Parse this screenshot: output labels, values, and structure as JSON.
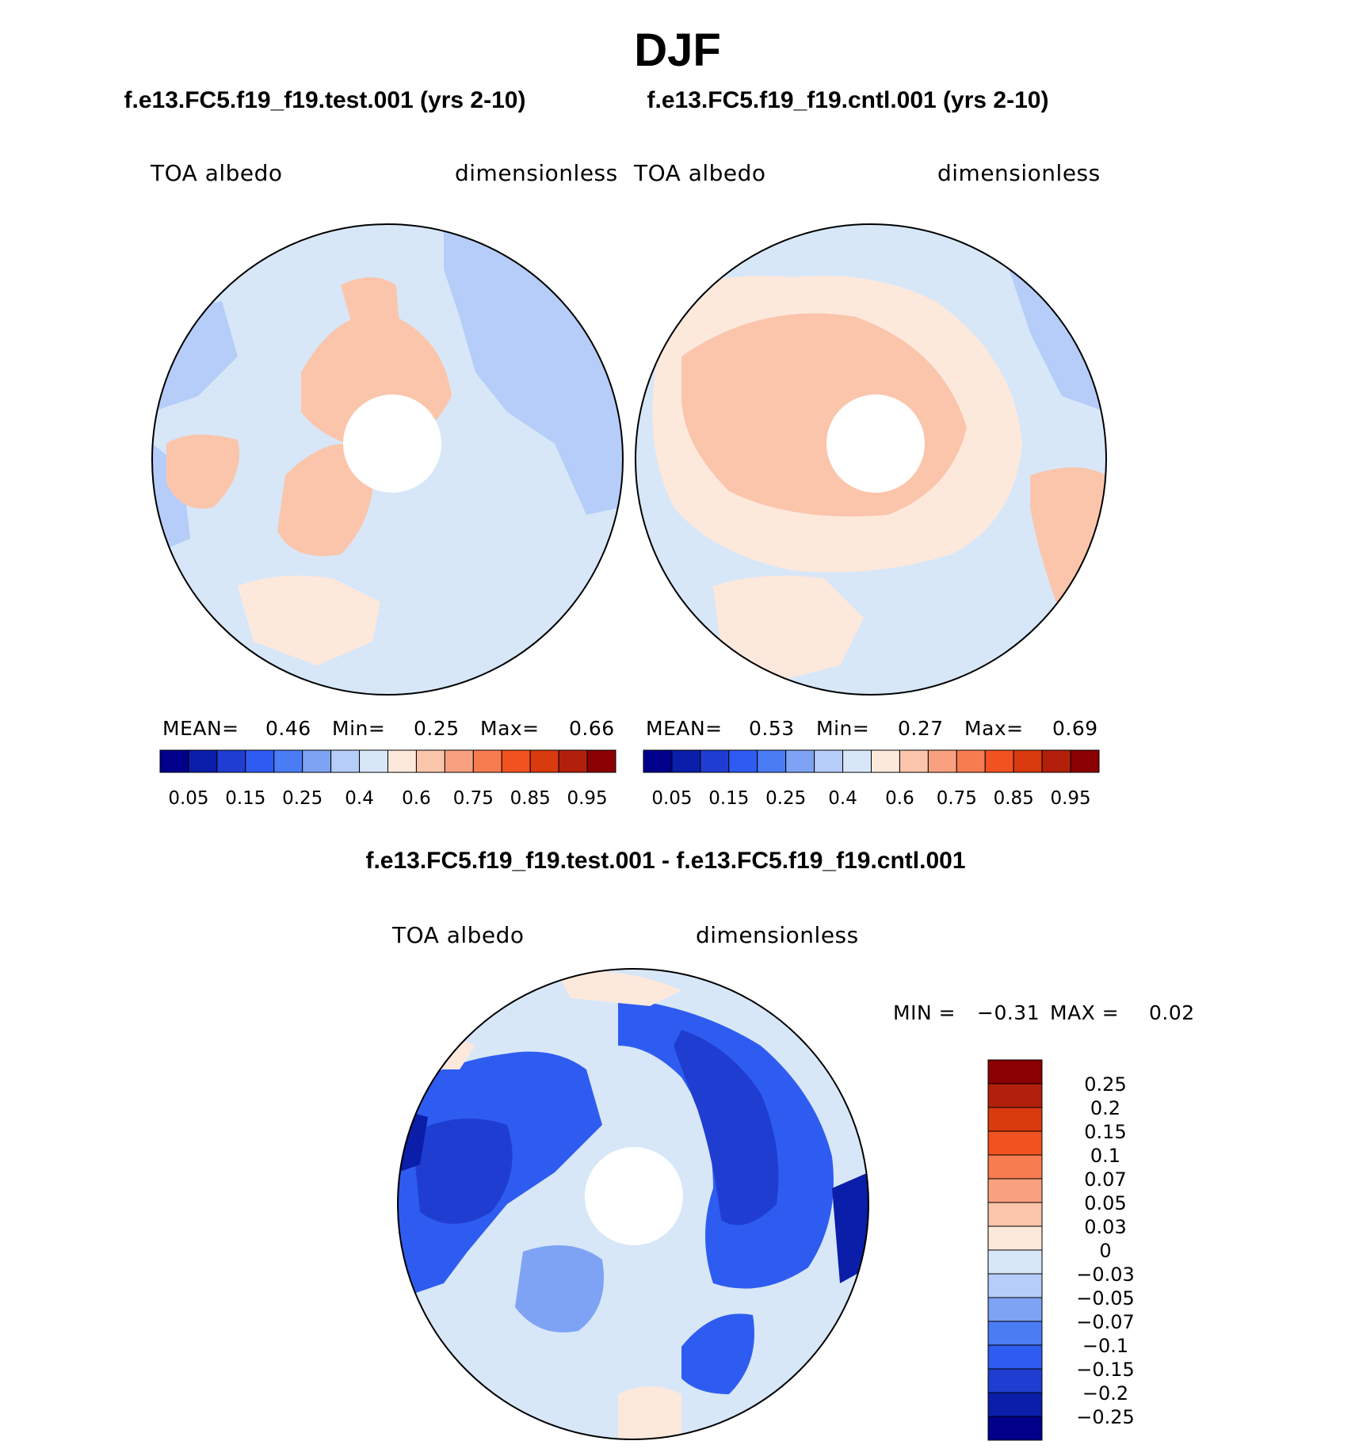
{
  "page": {
    "title": "DJF"
  },
  "chart_data": [
    {
      "type": "heatmap",
      "projection": "north-polar-stereographic",
      "case": "f.e13.FC5.f19_f19.test.001 (yrs 2-10)",
      "variable": "TOA  albedo",
      "units": "dimensionless",
      "stats": {
        "mean_label": "MEAN=",
        "mean": "0.46",
        "min_label": "Min=",
        "min": "0.25",
        "max_label": "Max=",
        "max": "0.66"
      },
      "colorbar": {
        "orientation": "horizontal",
        "tick_labels": [
          "0.05",
          "0.15",
          "0.25",
          "0.4",
          "0.6",
          "0.75",
          "0.85",
          "0.95"
        ],
        "colors": [
          "#00008b",
          "#0a1ea9",
          "#1f3ed1",
          "#2f5cf0",
          "#4a7cf4",
          "#7ea3f4",
          "#b5cdf8",
          "#d7e7f8",
          "#fde8dc",
          "#fbc5ab",
          "#f9a17f",
          "#f77c4f",
          "#f2521f",
          "#d93a0e",
          "#b2200c",
          "#8b0000"
        ]
      }
    },
    {
      "type": "heatmap",
      "projection": "north-polar-stereographic",
      "case": "f.e13.FC5.f19_f19.cntl.001 (yrs 2-10)",
      "variable": "TOA  albedo",
      "units": "dimensionless",
      "stats": {
        "mean_label": "MEAN=",
        "mean": "0.53",
        "min_label": "Min=",
        "min": "0.27",
        "max_label": "Max=",
        "max": "0.69"
      },
      "colorbar": {
        "orientation": "horizontal",
        "tick_labels": [
          "0.05",
          "0.15",
          "0.25",
          "0.4",
          "0.6",
          "0.75",
          "0.85",
          "0.95"
        ],
        "colors": [
          "#00008b",
          "#0a1ea9",
          "#1f3ed1",
          "#2f5cf0",
          "#4a7cf4",
          "#7ea3f4",
          "#b5cdf8",
          "#d7e7f8",
          "#fde8dc",
          "#fbc5ab",
          "#f9a17f",
          "#f77c4f",
          "#f2521f",
          "#d93a0e",
          "#b2200c",
          "#8b0000"
        ]
      }
    },
    {
      "type": "heatmap",
      "projection": "north-polar-stereographic",
      "title": "f.e13.FC5.f19_f19.test.001 - f.e13.FC5.f19_f19.cntl.001",
      "variable": "TOA  albedo",
      "units": "dimensionless",
      "stats": {
        "min_label": "MIN =",
        "min": "−0.31",
        "max_label": "MAX =",
        "max": "0.02"
      },
      "colorbar": {
        "orientation": "vertical",
        "tick_labels": [
          "0.25",
          "0.2",
          "0.15",
          "0.1",
          "0.07",
          "0.05",
          "0.03",
          "0",
          "−0.03",
          "−0.05",
          "−0.07",
          "−0.1",
          "−0.15",
          "−0.2",
          "−0.25"
        ],
        "colors": [
          "#8b0000",
          "#b2200c",
          "#d93a0e",
          "#f2521f",
          "#f77c4f",
          "#f9a17f",
          "#fbc5ab",
          "#fde8dc",
          "#d7e7f8",
          "#b5cdf8",
          "#7ea3f4",
          "#4a7cf4",
          "#2f5cf0",
          "#1f3ed1",
          "#0a1ea9",
          "#00008b"
        ]
      }
    }
  ]
}
